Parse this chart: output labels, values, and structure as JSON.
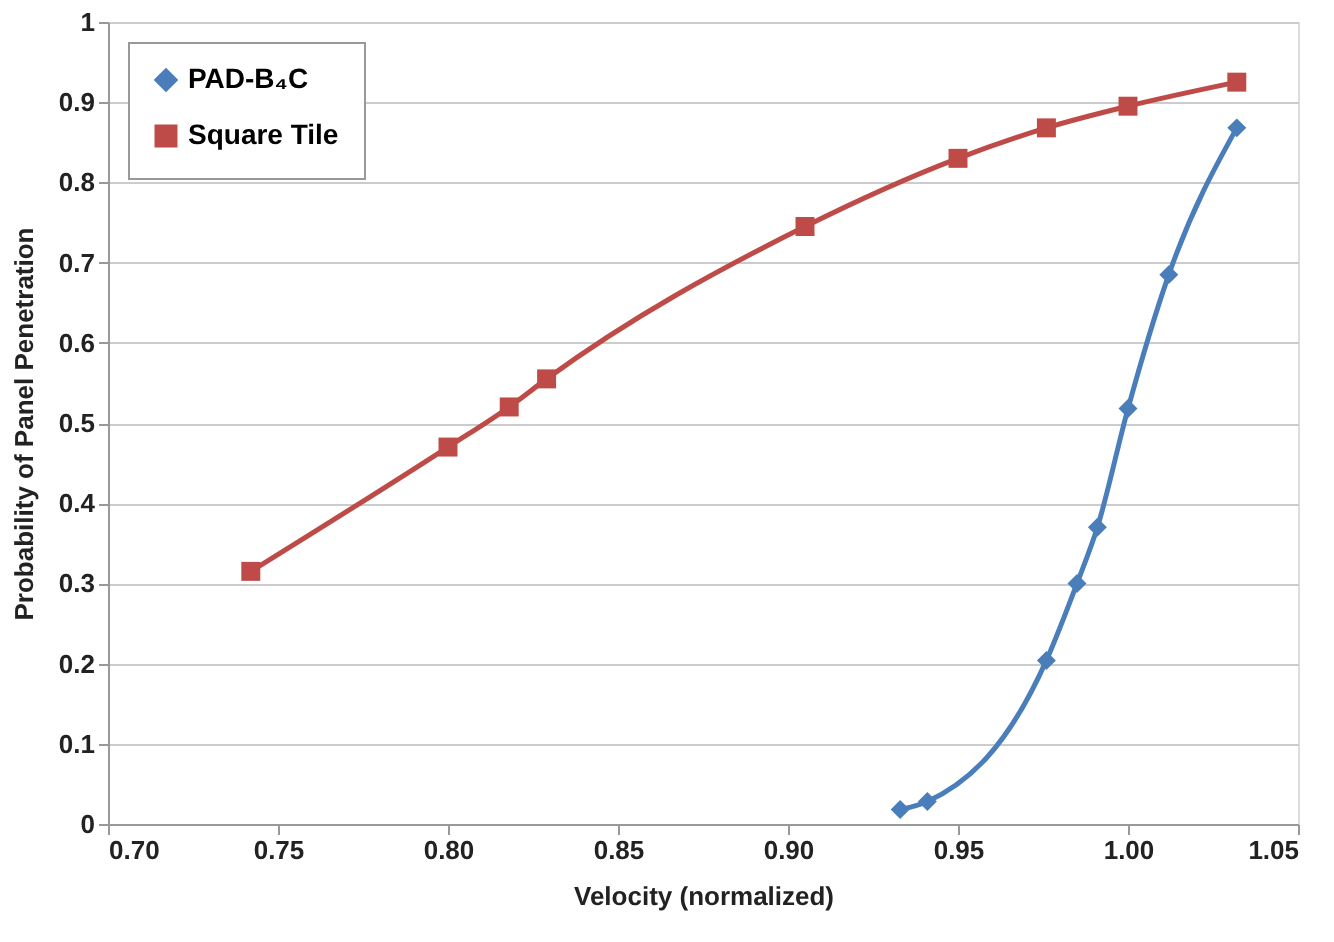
{
  "chart_data": {
    "type": "line",
    "xlabel": "Velocity (normalized)",
    "ylabel": "Probability of Panel Penetration",
    "xlim": [
      0.7,
      1.05
    ],
    "xticks": [
      {
        "value": 0.7,
        "label": "0.70"
      },
      {
        "value": 0.75,
        "label": "0.75"
      },
      {
        "value": 0.8,
        "label": "0.80"
      },
      {
        "value": 0.85,
        "label": "0.85"
      },
      {
        "value": 0.9,
        "label": "0.90"
      },
      {
        "value": 0.95,
        "label": "0.95"
      },
      {
        "value": 1.0,
        "label": "1.00"
      },
      {
        "value": 1.05,
        "label": "1.05"
      }
    ],
    "ylim": [
      0,
      1
    ],
    "yticks": [
      0,
      0.1,
      0.2,
      0.3,
      0.4,
      0.5,
      0.6,
      0.7,
      0.8,
      0.9,
      1
    ],
    "grid": "y",
    "legend": "top left",
    "line_style": "solid",
    "series": [
      {
        "name": "PAD-B₄C",
        "color": "#4a7ebb",
        "marker": "diamond",
        "x": [
          0.933,
          0.941,
          0.976,
          0.985,
          0.991,
          1.0,
          1.012,
          1.032
        ],
        "values": [
          0.018,
          0.028,
          0.204,
          0.3,
          0.37,
          0.518,
          0.685,
          0.868
        ]
      },
      {
        "name": "Square Tile",
        "color": "#be4b48",
        "marker": "square",
        "x": [
          0.742,
          0.8,
          0.818,
          0.829,
          0.905,
          0.95,
          0.976,
          1.0,
          1.032
        ],
        "values": [
          0.315,
          0.47,
          0.52,
          0.555,
          0.745,
          0.83,
          0.868,
          0.895,
          0.925
        ]
      }
    ]
  }
}
